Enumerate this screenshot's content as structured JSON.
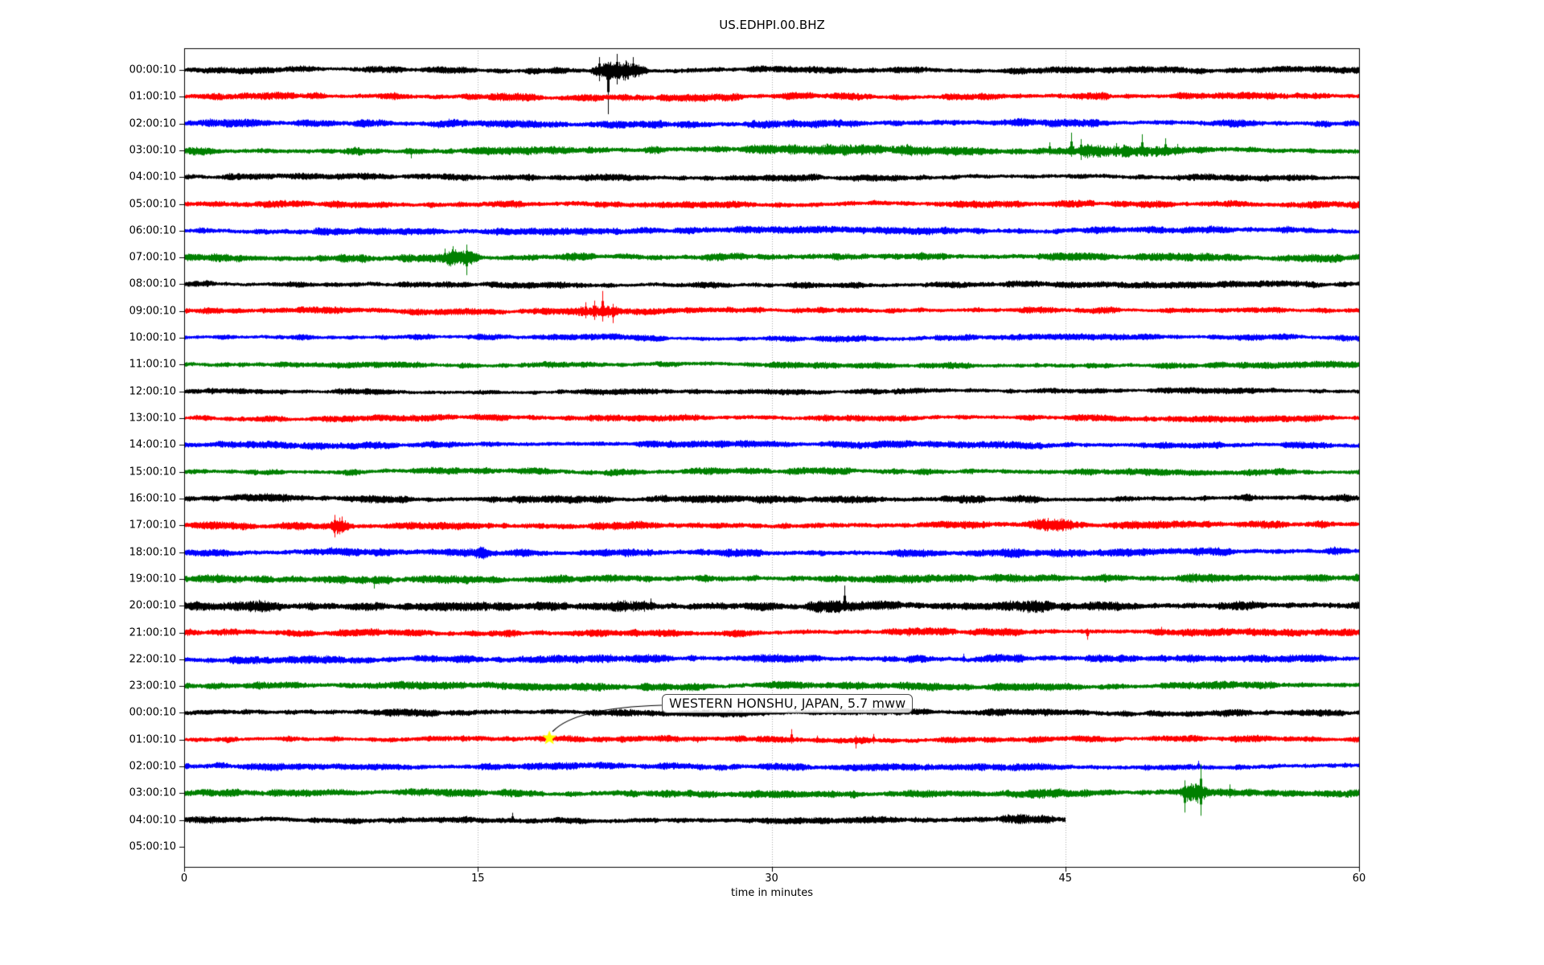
{
  "figure": {
    "title": "US.EDHPI.00.BHZ",
    "xlabel": "time in minutes"
  },
  "chart_data": {
    "type": "line",
    "subtype": "helicorder-day-plot",
    "title": "US.EDHPI.00.BHZ",
    "xlabel": "time in minutes",
    "ylabel": "",
    "xlim": [
      0,
      60
    ],
    "x_ticks": [
      0,
      15,
      30,
      45,
      60
    ],
    "grid_minutes": [
      15,
      30,
      45
    ],
    "grid_color": "#aaaaaa",
    "trace_color_cycle": [
      "#000000",
      "#ff0000",
      "#0000ff",
      "#008000"
    ],
    "annotation": {
      "label": "WESTERN HONSHU, JAPAN, 5.7 mww",
      "row_index": 25,
      "minute": 18.65,
      "marker": "yellow-star",
      "marker_color": "#ffff00"
    },
    "rows": [
      {
        "label": "00:00:10",
        "color": "#000000",
        "amp": 3.6,
        "events": [
          {
            "kind": "burst",
            "start": 20.6,
            "end": 23.8,
            "amp": 9
          },
          {
            "kind": "spike",
            "t": 21.2,
            "up": 16,
            "down": 14
          },
          {
            "kind": "spike",
            "t": 21.65,
            "up": 10,
            "down": 55
          },
          {
            "kind": "spike",
            "t": 22.1,
            "up": 20,
            "down": 18
          },
          {
            "kind": "spike",
            "t": 22.55,
            "up": 12,
            "down": 10
          },
          {
            "kind": "spike",
            "t": 22.9,
            "up": 16,
            "down": 8
          }
        ]
      },
      {
        "label": "01:00:10",
        "color": "#ff0000",
        "amp": 4.0,
        "events": []
      },
      {
        "label": "02:00:10",
        "color": "#0000ff",
        "amp": 4.2,
        "events": [
          {
            "kind": "spike",
            "t": 13.5,
            "up": 6,
            "down": 4
          }
        ]
      },
      {
        "label": "03:00:10",
        "color": "#008000",
        "amp": 4.2,
        "events": [
          {
            "kind": "burst",
            "start": 28,
            "end": 43,
            "amp": 3
          },
          {
            "kind": "burst",
            "start": 43,
            "end": 52.5,
            "amp": 5
          },
          {
            "kind": "spike",
            "t": 11.6,
            "up": 2,
            "down": 10
          },
          {
            "kind": "spike",
            "t": 36.9,
            "up": 8,
            "down": 4
          },
          {
            "kind": "spike",
            "t": 44.2,
            "up": 10,
            "down": 6
          },
          {
            "kind": "spike",
            "t": 45.3,
            "up": 22,
            "down": 8
          },
          {
            "kind": "spike",
            "t": 45.8,
            "up": 14,
            "down": 12
          },
          {
            "kind": "spike",
            "t": 46.1,
            "up": 8,
            "down": 10
          },
          {
            "kind": "spike",
            "t": 47.6,
            "up": 9,
            "down": 4
          },
          {
            "kind": "spike",
            "t": 48.9,
            "up": 20,
            "down": 5
          },
          {
            "kind": "spike",
            "t": 50.1,
            "up": 15,
            "down": 5
          },
          {
            "kind": "spike",
            "t": 50.7,
            "up": 8,
            "down": 4
          }
        ]
      },
      {
        "label": "04:00:10",
        "color": "#000000",
        "amp": 3.6,
        "events": []
      },
      {
        "label": "05:00:10",
        "color": "#ff0000",
        "amp": 3.9,
        "events": []
      },
      {
        "label": "06:00:10",
        "color": "#0000ff",
        "amp": 3.9,
        "events": []
      },
      {
        "label": "07:00:10",
        "color": "#008000",
        "amp": 4.3,
        "events": [
          {
            "kind": "burst",
            "start": 12.9,
            "end": 15.1,
            "amp": 7
          },
          {
            "kind": "spike",
            "t": 13.3,
            "up": 11,
            "down": 6
          },
          {
            "kind": "spike",
            "t": 13.7,
            "up": 14,
            "down": 7
          },
          {
            "kind": "spike",
            "t": 14.1,
            "up": 6,
            "down": 8
          },
          {
            "kind": "spike",
            "t": 14.4,
            "up": 16,
            "down": 22
          },
          {
            "kind": "spike",
            "t": 14.65,
            "up": 7,
            "down": 9
          }
        ]
      },
      {
        "label": "08:00:10",
        "color": "#000000",
        "amp": 3.5,
        "events": []
      },
      {
        "label": "09:00:10",
        "color": "#ff0000",
        "amp": 3.6,
        "events": [
          {
            "kind": "burst",
            "start": 19.4,
            "end": 22.4,
            "amp": 6
          },
          {
            "kind": "spike",
            "t": 20.5,
            "up": 11,
            "down": 9
          },
          {
            "kind": "spike",
            "t": 20.95,
            "up": 13,
            "down": 11
          },
          {
            "kind": "spike",
            "t": 21.35,
            "up": 25,
            "down": 13
          },
          {
            "kind": "spike",
            "t": 21.9,
            "up": 9,
            "down": 15
          }
        ]
      },
      {
        "label": "10:00:10",
        "color": "#0000ff",
        "amp": 3.4,
        "events": []
      },
      {
        "label": "11:00:10",
        "color": "#008000",
        "amp": 3.5,
        "events": []
      },
      {
        "label": "12:00:10",
        "color": "#000000",
        "amp": 3.2,
        "events": []
      },
      {
        "label": "13:00:10",
        "color": "#ff0000",
        "amp": 3.5,
        "events": []
      },
      {
        "label": "14:00:10",
        "color": "#0000ff",
        "amp": 3.9,
        "events": []
      },
      {
        "label": "15:00:10",
        "color": "#008000",
        "amp": 3.7,
        "events": []
      },
      {
        "label": "16:00:10",
        "color": "#000000",
        "amp": 4.1,
        "events": []
      },
      {
        "label": "17:00:10",
        "color": "#ff0000",
        "amp": 4.2,
        "events": [
          {
            "kind": "burst",
            "start": 7.3,
            "end": 8.5,
            "amp": 8
          },
          {
            "kind": "spike",
            "t": 7.7,
            "up": 13,
            "down": 15
          },
          {
            "kind": "spike",
            "t": 8.05,
            "up": 11,
            "down": 9
          },
          {
            "kind": "burst",
            "start": 42.5,
            "end": 46.5,
            "amp": 4
          },
          {
            "kind": "spike",
            "t": 44.9,
            "up": 8,
            "down": 6
          }
        ]
      },
      {
        "label": "18:00:10",
        "color": "#0000ff",
        "amp": 4.3,
        "events": [
          {
            "kind": "burst",
            "start": 14.8,
            "end": 15.6,
            "amp": 3
          },
          {
            "kind": "spike",
            "t": 15.1,
            "up": 7,
            "down": 4
          },
          {
            "kind": "burst",
            "start": 40.5,
            "end": 43,
            "amp": 3
          }
        ]
      },
      {
        "label": "19:00:10",
        "color": "#008000",
        "amp": 4.4,
        "events": [
          {
            "kind": "burst",
            "start": 0.5,
            "end": 3.5,
            "amp": 3
          },
          {
            "kind": "spike",
            "t": 9.7,
            "up": 3,
            "down": 12
          },
          {
            "kind": "burst",
            "start": 40.5,
            "end": 44,
            "amp": 3
          },
          {
            "kind": "burst",
            "start": 50.5,
            "end": 53,
            "amp": 3.5
          }
        ]
      },
      {
        "label": "20:00:10",
        "color": "#000000",
        "amp": 4.8,
        "events": [
          {
            "kind": "burst",
            "start": 1.8,
            "end": 5,
            "amp": 4
          },
          {
            "kind": "burst",
            "start": 21.5,
            "end": 24.5,
            "amp": 4.5
          },
          {
            "kind": "burst",
            "start": 31.5,
            "end": 34,
            "amp": 4
          },
          {
            "kind": "burst",
            "start": 41.5,
            "end": 44.5,
            "amp": 4
          },
          {
            "kind": "spike",
            "t": 23.8,
            "up": 9,
            "down": 5
          },
          {
            "kind": "spike",
            "t": 33.7,
            "up": 25,
            "down": 4
          }
        ]
      },
      {
        "label": "21:00:10",
        "color": "#ff0000",
        "amp": 4.0,
        "events": [
          {
            "kind": "spike",
            "t": 37.0,
            "up": 6,
            "down": 5
          },
          {
            "kind": "spike",
            "t": 46.1,
            "up": 5,
            "down": 9
          },
          {
            "kind": "spike",
            "t": 49.9,
            "up": 7,
            "down": 4
          }
        ]
      },
      {
        "label": "22:00:10",
        "color": "#0000ff",
        "amp": 4.3,
        "events": [
          {
            "kind": "spike",
            "t": 30.3,
            "up": 7,
            "down": 4
          },
          {
            "kind": "spike",
            "t": 39.8,
            "up": 7,
            "down": 4
          }
        ]
      },
      {
        "label": "23:00:10",
        "color": "#008000",
        "amp": 4.2,
        "events": []
      },
      {
        "label": "00:00:10",
        "color": "#000000",
        "amp": 3.9,
        "events": []
      },
      {
        "label": "01:00:10",
        "color": "#ff0000",
        "amp": 3.6,
        "events": [
          {
            "kind": "spike",
            "t": 26.2,
            "up": 4,
            "down": 4
          },
          {
            "kind": "spike",
            "t": 31.0,
            "up": 13,
            "down": 5
          },
          {
            "kind": "spike",
            "t": 32.3,
            "up": 5,
            "down": 4
          },
          {
            "kind": "spike",
            "t": 34.3,
            "up": 5,
            "down": 11
          },
          {
            "kind": "spike",
            "t": 35.2,
            "up": 7,
            "down": 5
          }
        ]
      },
      {
        "label": "02:00:10",
        "color": "#0000ff",
        "amp": 3.9,
        "events": [
          {
            "kind": "spike",
            "t": 51.8,
            "up": 7,
            "down": 4
          }
        ]
      },
      {
        "label": "03:00:10",
        "color": "#008000",
        "amp": 4.0,
        "events": [
          {
            "kind": "burst",
            "start": 43,
            "end": 45,
            "amp": 2.5
          },
          {
            "kind": "burst",
            "start": 50.8,
            "end": 52.4,
            "amp": 10
          },
          {
            "kind": "spike",
            "t": 51.1,
            "up": 16,
            "down": 24
          },
          {
            "kind": "spike",
            "t": 51.9,
            "up": 36,
            "down": 28
          },
          {
            "kind": "spike",
            "t": 53.4,
            "up": 11,
            "down": 6
          }
        ]
      },
      {
        "label": "04:00:10",
        "color": "#000000",
        "amp": 3.8,
        "end_minute": 45,
        "events": [
          {
            "kind": "spike",
            "t": 16.75,
            "up": 9,
            "down": 3
          },
          {
            "kind": "burst",
            "start": 41.5,
            "end": 44.7,
            "amp": 4
          }
        ]
      },
      {
        "label": "05:00:10",
        "color": null,
        "amp": 0,
        "events": []
      }
    ]
  }
}
